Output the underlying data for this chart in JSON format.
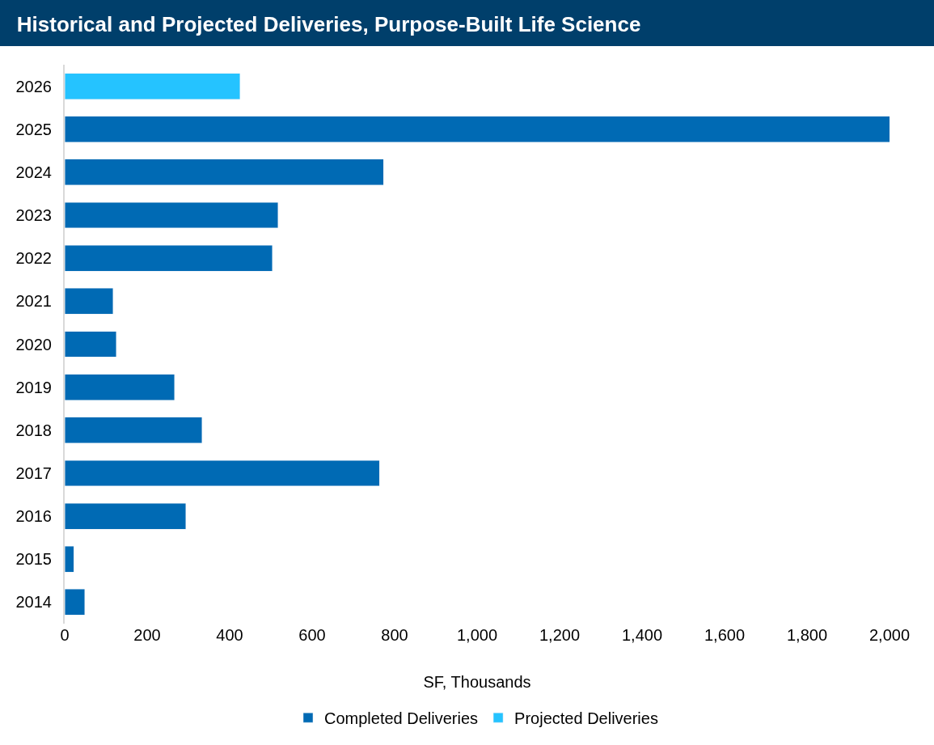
{
  "chart_data": {
    "type": "bar",
    "orientation": "horizontal",
    "stacked": true,
    "title": "Historical and Projected Deliveries, Purpose-Built Life Science",
    "xlabel": "SF, Thousands",
    "categories": [
      "2026",
      "2025",
      "2024",
      "2023",
      "2022",
      "2021",
      "2020",
      "2019",
      "2018",
      "2017",
      "2016",
      "2015",
      "2014"
    ],
    "series": [
      {
        "name": "Completed Deliveries",
        "color": "#006ab4",
        "values": [
          null,
          2000,
          773,
          517,
          503,
          117,
          125,
          266,
          333,
          763,
          294,
          22,
          49
        ]
      },
      {
        "name": "Projected Deliveries",
        "color": "#25c3ff",
        "values": [
          425,
          null,
          null,
          null,
          null,
          null,
          null,
          null,
          null,
          null,
          null,
          null,
          null
        ]
      }
    ],
    "xlim": [
      0,
      2000
    ],
    "xticks": [
      0,
      {
        "value": 200,
        "label": "200"
      },
      {
        "value": 400,
        "label": "400"
      },
      {
        "value": 600,
        "label": "600"
      },
      {
        "value": 800,
        "label": "800"
      },
      {
        "value": 1000,
        "label": "1,000"
      },
      {
        "value": 1200,
        "label": "1,200"
      },
      {
        "value": 1400,
        "label": "1,400"
      },
      {
        "value": 1600,
        "label": "1,600"
      },
      {
        "value": 1800,
        "label": "1,800"
      },
      {
        "value": 2000,
        "label": "2,000"
      }
    ],
    "legend": "bottom"
  }
}
